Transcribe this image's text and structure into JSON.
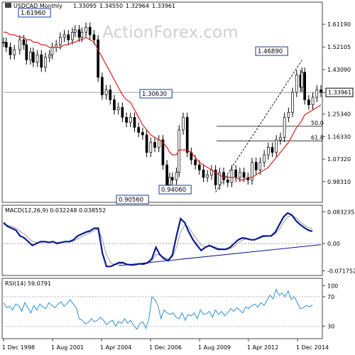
{
  "chart_data": [
    {
      "type": "candlestick",
      "panel": "price",
      "title": "USDCAD Monthly",
      "ohlc_readout": [
        "1.33095",
        "1.34550",
        "1.32964",
        "1.33961"
      ],
      "watermark": "ActionForex.com",
      "ylim": [
        0.906,
        1.672
      ],
      "yticks": [
        "1.61190",
        "1.52105",
        "1.43090",
        "1.33961",
        "1.25340",
        "1.16330",
        "1.07320",
        "0.98310"
      ],
      "last_price": "1.33961",
      "x": [
        "1997-08",
        "1997-10",
        "1998-01",
        "1998-04",
        "1998-08",
        "1998-11",
        "1999-01",
        "1999-04",
        "1999-06",
        "1999-09",
        "1999-12",
        "2000-03",
        "2000-06",
        "2000-08",
        "2000-11",
        "2001-02",
        "2001-05",
        "2001-08",
        "2001-11",
        "2002-01",
        "2002-04",
        "2002-06",
        "2002-09",
        "2002-12",
        "2003-03",
        "2003-06",
        "2003-09",
        "2003-12",
        "2004-03",
        "2004-06",
        "2004-09",
        "2004-12",
        "2005-03",
        "2005-06",
        "2005-09",
        "2005-12",
        "2006-03",
        "2006-06",
        "2006-09",
        "2006-12",
        "2007-03",
        "2007-06",
        "2007-09",
        "2007-11",
        "2008-01",
        "2008-04",
        "2008-06",
        "2008-09",
        "2008-12",
        "2009-03",
        "2009-06",
        "2009-09",
        "2009-12",
        "2010-03",
        "2010-06",
        "2010-09",
        "2010-12",
        "2011-03",
        "2011-06",
        "2011-09",
        "2011-12",
        "2012-03",
        "2012-06",
        "2012-09",
        "2012-12",
        "2013-03",
        "2013-06",
        "2013-09",
        "2013-12",
        "2014-03",
        "2014-06",
        "2014-09",
        "2014-12",
        "2015-03",
        "2015-06",
        "2015-09",
        "2015-12",
        "2016-01",
        "2016-03",
        "2016-06",
        "2016-09",
        "2016-12",
        "2017-03"
      ],
      "close": [
        1.54,
        1.52,
        1.49,
        1.51,
        1.55,
        1.53,
        1.47,
        1.5,
        1.46,
        1.49,
        1.44,
        1.48,
        1.49,
        1.52,
        1.53,
        1.56,
        1.57,
        1.55,
        1.58,
        1.59,
        1.56,
        1.58,
        1.6,
        1.57,
        1.55,
        1.4,
        1.33,
        1.35,
        1.31,
        1.27,
        1.28,
        1.24,
        1.22,
        1.24,
        1.2,
        1.18,
        1.17,
        1.1,
        1.14,
        1.12,
        1.15,
        1.05,
        0.97,
        1.0,
        0.99,
        1.02,
        1.19,
        1.24,
        1.1,
        1.07,
        1.05,
        1.03,
        1.0,
        1.01,
        1.03,
        0.97,
        1.02,
        0.99,
        0.98,
        1.03,
        1.0,
        1.02,
        1.0,
        0.99,
        1.06,
        1.03,
        1.06,
        1.09,
        1.12,
        1.1,
        1.15,
        1.16,
        1.24,
        1.26,
        1.34,
        1.41,
        1.36,
        1.42,
        1.31,
        1.29,
        1.32,
        1.35,
        1.34
      ],
      "hl_spread": 0.038,
      "labels": [
        "1.61960",
        "1.30630",
        "0.90560",
        "0.94060",
        "1.46890"
      ],
      "fib_levels": [
        {
          "label": "50.0",
          "value": 1.2043
        },
        {
          "label": "61.8",
          "value": 1.1458
        }
      ],
      "series": [
        {
          "name": "",
          "color": "#dd1e1e",
          "values": [
            1.58,
            1.58,
            1.57,
            1.57,
            1.56,
            1.56,
            1.55,
            1.55,
            1.54,
            1.54,
            1.53,
            1.53,
            1.52,
            1.52,
            1.52,
            1.52,
            1.53,
            1.53,
            1.54,
            1.54,
            1.55,
            1.55,
            1.56,
            1.55,
            1.54,
            1.51,
            1.48,
            1.45,
            1.42,
            1.39,
            1.36,
            1.33,
            1.31,
            1.3,
            1.27,
            1.24,
            1.21,
            1.19,
            1.17,
            1.16,
            1.15,
            1.14,
            1.12,
            1.1,
            1.09,
            1.09,
            1.11,
            1.11,
            1.11,
            1.1,
            1.08,
            1.06,
            1.05,
            1.04,
            1.03,
            1.02,
            1.01,
            1.0,
            1.0,
            1.0,
            1.0,
            0.99,
            0.99,
            1.0,
            1.0,
            1.01,
            1.02,
            1.03,
            1.04,
            1.06,
            1.08,
            1.1,
            1.12,
            1.14,
            1.17,
            1.2,
            1.22,
            1.23,
            1.25,
            1.26,
            1.27,
            1.28,
            1.29
          ]
        }
      ]
    },
    {
      "type": "line",
      "panel": "macd",
      "title": "MACD(12,26,9) 0.032248 0.038552",
      "ylim": [
        -0.08,
        0.095
      ],
      "yticks": [
        {
          "label": "0.083235",
          "value": 0.083235
        },
        {
          "label": "0.00",
          "value": 0.0
        },
        {
          "label": "-0.071752",
          "value": -0.071752
        }
      ],
      "series": [
        {
          "name": "",
          "color": "#0a1a8c",
          "values": [
            0.055,
            0.045,
            0.04,
            0.035,
            0.02,
            0.015,
            0.005,
            -0.005,
            0.0,
            0.005,
            0.005,
            0.003,
            0.005,
            0.0,
            0.003,
            0.005,
            0.005,
            0.01,
            0.02,
            0.025,
            0.03,
            0.033,
            0.04,
            0.04,
            -0.025,
            -0.06,
            -0.06,
            -0.055,
            -0.05,
            -0.05,
            -0.055,
            -0.056,
            -0.055,
            -0.053,
            -0.054,
            -0.05,
            -0.04,
            -0.01,
            -0.03,
            -0.04,
            -0.045,
            -0.03,
            0.02,
            0.065,
            0.055,
            0.03,
            0.01,
            -0.005,
            -0.018,
            -0.01,
            -0.005,
            -0.01,
            -0.015,
            -0.015,
            -0.015,
            -0.01,
            0.0,
            0.01,
            0.015,
            0.013,
            0.01,
            0.01,
            0.015,
            0.02,
            0.02,
            0.02,
            0.03,
            0.05,
            0.07,
            0.08,
            0.075,
            0.06,
            0.05,
            0.042,
            0.035,
            0.032
          ]
        },
        {
          "name": "",
          "color": "#999999",
          "values": [
            0.05,
            0.048,
            0.045,
            0.04,
            0.032,
            0.025,
            0.015,
            0.006,
            0.003,
            0.003,
            0.004,
            0.004,
            0.004,
            0.003,
            0.003,
            0.004,
            0.004,
            0.006,
            0.012,
            0.018,
            0.024,
            0.028,
            0.034,
            0.038,
            0.01,
            -0.03,
            -0.05,
            -0.056,
            -0.054,
            -0.052,
            -0.053,
            -0.055,
            -0.055,
            -0.054,
            -0.054,
            -0.052,
            -0.046,
            -0.028,
            -0.03,
            -0.036,
            -0.04,
            -0.036,
            -0.01,
            0.03,
            0.048,
            0.042,
            0.026,
            0.01,
            -0.005,
            -0.008,
            -0.007,
            -0.008,
            -0.012,
            -0.014,
            -0.015,
            -0.013,
            -0.007,
            0.002,
            0.009,
            0.012,
            0.011,
            0.01,
            0.013,
            0.017,
            0.019,
            0.02,
            0.025,
            0.038,
            0.056,
            0.07,
            0.074,
            0.068,
            0.058,
            0.049,
            0.042,
            0.038
          ]
        }
      ],
      "trendline": [
        {
          "x": 0.3632,
          "y": -0.058
        },
        {
          "x": 1.0,
          "y": -0.003
        }
      ]
    },
    {
      "type": "line",
      "panel": "rsi",
      "title": "RSI(14) 59.0791",
      "ylim": [
        15,
        92
      ],
      "yticks": [
        {
          "label": "70",
          "value": 70
        },
        {
          "label": "30",
          "value": 30
        }
      ],
      "extra_tick": {
        "label": "100",
        "value": 85
      },
      "series": [
        {
          "name": "",
          "color": "#2b8fd6",
          "values": [
            62,
            55,
            57,
            52,
            60,
            58,
            50,
            62,
            55,
            48,
            58,
            52,
            60,
            56,
            54,
            62,
            58,
            55,
            60,
            63,
            57,
            61,
            66,
            60,
            55,
            40,
            38,
            33,
            35,
            40,
            36,
            38,
            42,
            38,
            32,
            36,
            38,
            30,
            36,
            34,
            40,
            34,
            38,
            31,
            26,
            33,
            36,
            27,
            40,
            70,
            66,
            58,
            40,
            52,
            48,
            46,
            48,
            42,
            40,
            48,
            38,
            46,
            44,
            48,
            40,
            52,
            46,
            47,
            50,
            42,
            52,
            46,
            50,
            44,
            48,
            54,
            50,
            55,
            52,
            48,
            56,
            54,
            58,
            60,
            56,
            62,
            58,
            65,
            72,
            67,
            80,
            72,
            75,
            70,
            78,
            66,
            70,
            62,
            54,
            55,
            58,
            56,
            59
          ]
        }
      ]
    }
  ],
  "x_axis": [
    "1 Dec 1998",
    "1 Aug 2001",
    "1 Apr 2004",
    "1 Dec 2006",
    "1 Aug 2009",
    "1 Apr 2012",
    "1 Dec 2014"
  ]
}
